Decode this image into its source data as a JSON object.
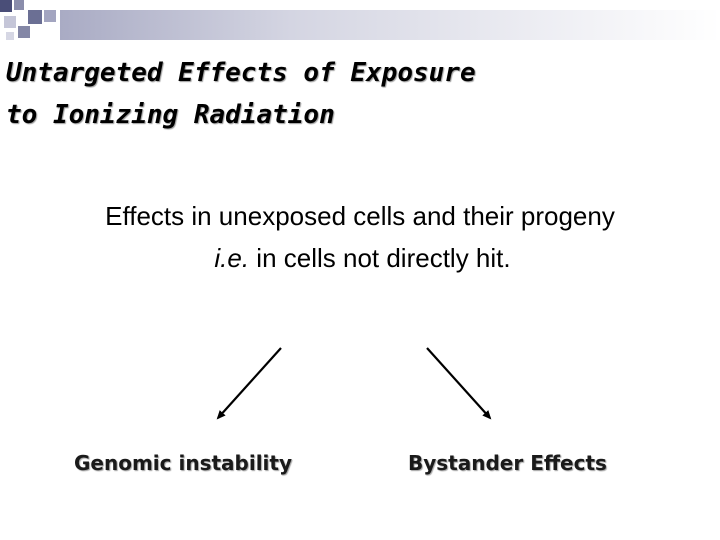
{
  "slide": {
    "title_line1": "Untargeted Effects of Exposure",
    "title_line2": "to Ionizing Radiation",
    "body_line1": "Effects in unexposed cells and their progeny",
    "body_line2_italic": "i.e.",
    "body_line2_rest": " in cells not directly hit."
  },
  "branches": {
    "left_label": "Genomic instability",
    "right_label": "Bystander Effects"
  },
  "colors": {
    "text": "#000000",
    "band_dark": "#4a4e78",
    "band_light": "#c8c8d8",
    "arrow": "#000000"
  }
}
